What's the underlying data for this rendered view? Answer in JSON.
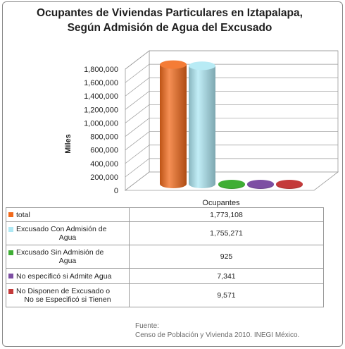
{
  "chart_data": {
    "type": "bar",
    "title_lines": [
      "Ocupantes de Viviendas Particulares en Iztapalapa,",
      "Según Admisión de Agua del Excusado"
    ],
    "ylabel": "Miles",
    "xlabel": "Ocupantes",
    "ylim": [
      0,
      1800000
    ],
    "y_ticks": [
      "0",
      "200,000",
      "400,000",
      "600,000",
      "800,000",
      "1,000,000",
      "1,200,000",
      "1,400,000",
      "1,600,000",
      "1,800,000"
    ],
    "series": [
      {
        "name": "total",
        "value": 1773108,
        "value_label": "1,773,108",
        "color": "#f26a1b"
      },
      {
        "name": "Excusado Con Admisión de Agua",
        "value": 1755271,
        "value_label": "1,755,271",
        "color": "#aee8f4"
      },
      {
        "name": "Excusado Sin Admisión de Agua",
        "value": 925,
        "value_label": "925",
        "color": "#3fae34"
      },
      {
        "name": "No especificó si Admite Agua",
        "value": 7341,
        "value_label": "7,341",
        "color": "#7d4fa3"
      },
      {
        "name": "No Disponen de Excusado o No se Especificó si Tienen",
        "value": 9571,
        "value_label": "9,571",
        "color": "#c43a3a"
      }
    ]
  },
  "table_rows": [
    {
      "name_lines": [
        "total"
      ],
      "value": "1,773,108"
    },
    {
      "name_lines": [
        "Excusado Con Admisión de",
        "Agua"
      ],
      "value": "1,755,271"
    },
    {
      "name_lines": [
        "Excusado Sin Admisión de",
        "Agua"
      ],
      "value": "925"
    },
    {
      "name_lines": [
        "No especificó si Admite Agua"
      ],
      "value": "7,341"
    },
    {
      "name_lines": [
        "No Disponen de Excusado o",
        "No se Especificó si Tienen"
      ],
      "value": "9,571"
    }
  ],
  "source": {
    "label": "Fuente:",
    "text": "Censo de Población y Vivienda 2010. INEGI México."
  }
}
